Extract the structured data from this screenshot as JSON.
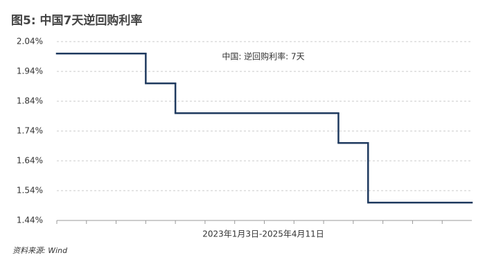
{
  "chart_data": {
    "type": "line",
    "step": true,
    "title": "图5: 中国7天逆回购利率",
    "x_label": "2023年1月3日-2025年4月11日",
    "source": "资料来源: Wind",
    "categories": [
      null,
      null,
      null,
      null,
      null,
      null,
      null,
      null,
      null,
      null,
      null,
      null,
      null,
      null,
      null,
      null,
      null,
      null,
      null,
      null,
      null,
      null,
      null,
      null,
      null,
      null,
      null,
      null
    ],
    "series": [
      {
        "name": "中国: 逆回购利率: 7天",
        "color": "#1f3a5f",
        "values": [
          2.0,
          2.0,
          2.0,
          2.0,
          2.0,
          2.0,
          1.9,
          1.9,
          1.8,
          1.8,
          1.8,
          1.8,
          1.8,
          1.8,
          1.8,
          1.8,
          1.8,
          1.8,
          1.8,
          1.7,
          1.7,
          1.5,
          1.5,
          1.5,
          1.5,
          1.5,
          1.5,
          1.5
        ]
      }
    ],
    "ylim": [
      1.44,
      2.04
    ],
    "yticks": [
      {
        "value": 1.44,
        "label": "1.44%"
      },
      {
        "value": 1.54,
        "label": "1.54%"
      },
      {
        "value": 1.64,
        "label": "1.64%"
      },
      {
        "value": 1.74,
        "label": "1.74%"
      },
      {
        "value": 1.84,
        "label": "1.84%"
      },
      {
        "value": 1.94,
        "label": "1.94%"
      },
      {
        "value": 2.04,
        "label": "2.04%"
      }
    ],
    "grid": true
  }
}
